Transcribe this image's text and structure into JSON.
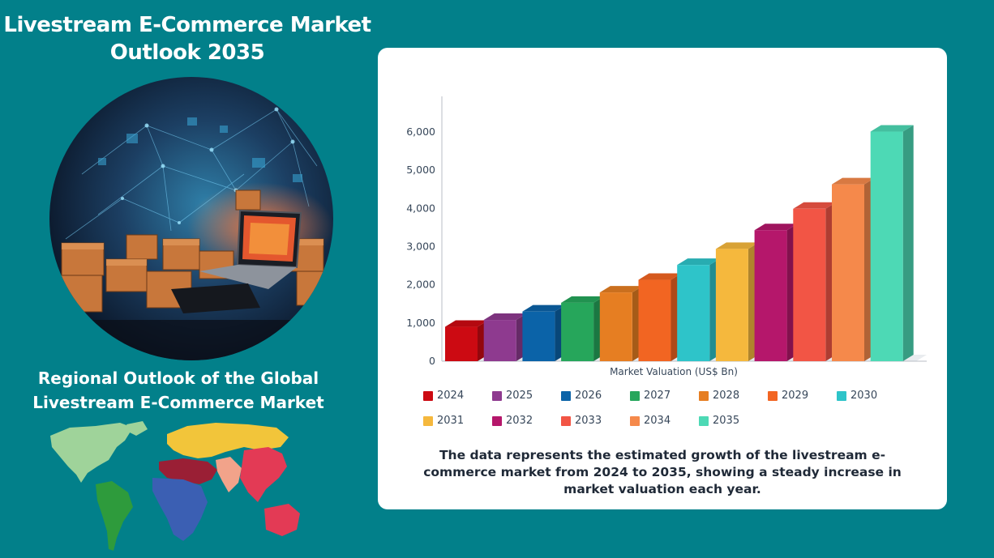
{
  "page": {
    "title_line1": "Livestream E-Commerce Market",
    "title_line2": "Outlook 2035",
    "region_title_line1": "Regional Outlook of the Global",
    "region_title_line2": "Livestream E-Commerce Market",
    "caption": "The data represents the estimated growth of the livestream e-commerce market from 2024 to 2035, showing a steady increase in market valuation each year."
  },
  "colors": {
    "background": "#02808a",
    "card": "#ffffff"
  },
  "chart_data": {
    "type": "bar",
    "title": "",
    "xlabel": "Market Valuation (US$ Bn)",
    "ylabel": "",
    "ylim": [
      0,
      6000
    ],
    "yticks": [
      "0",
      "1,000",
      "2,000",
      "3,000",
      "4,000",
      "5,000",
      "6,000"
    ],
    "grid": false,
    "legend_position": "bottom",
    "categories": [
      "2024",
      "2025",
      "2026",
      "2027",
      "2028",
      "2029",
      "2030",
      "2031",
      "2032",
      "2033",
      "2034",
      "2035"
    ],
    "values": [
      900,
      1080,
      1300,
      1530,
      1800,
      2130,
      2520,
      2940,
      3430,
      3990,
      4630,
      6010
    ],
    "colors": [
      "#cc0a12",
      "#8e3a8f",
      "#0b63a8",
      "#26a65b",
      "#e67e22",
      "#f26522",
      "#2ec4c9",
      "#f5b83d",
      "#b5176b",
      "#f25545",
      "#f5894b",
      "#4dd9b5"
    ]
  }
}
